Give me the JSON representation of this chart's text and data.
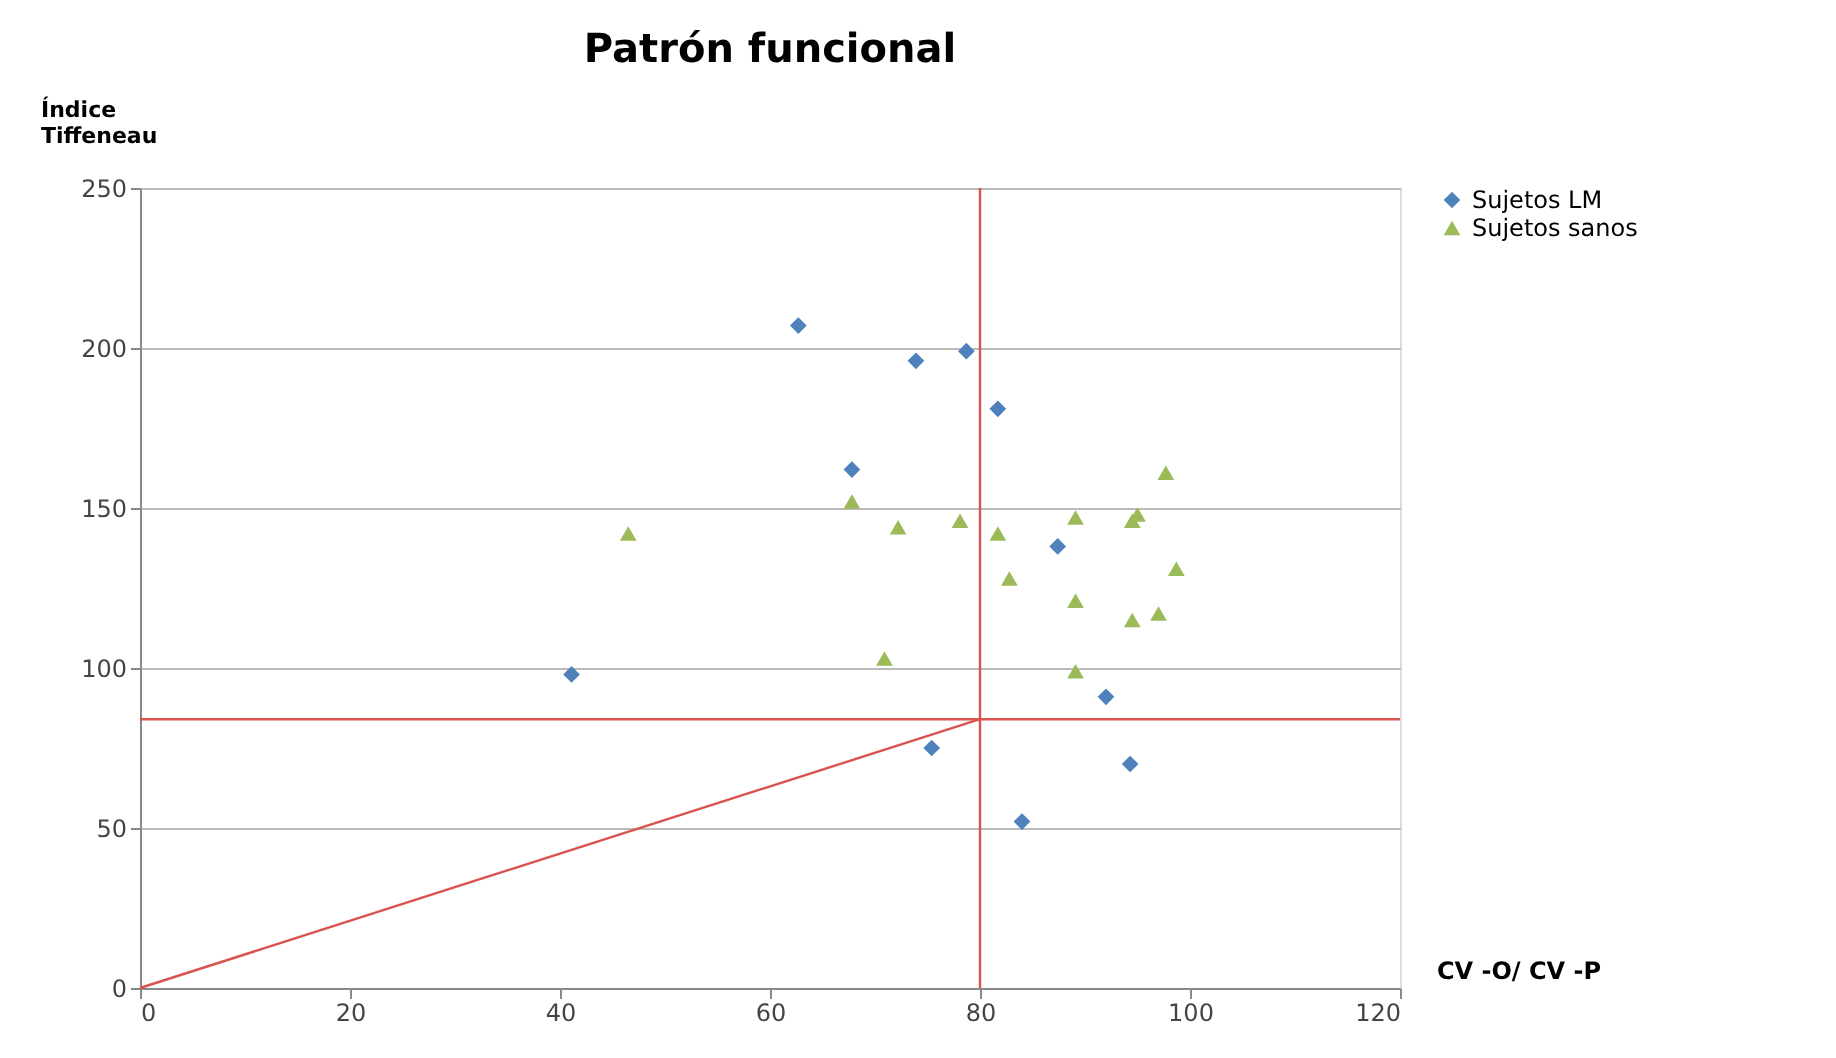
{
  "chart_data": {
    "type": "scatter",
    "title": "Patrón funcional",
    "xlabel": "CV -O/ CV -P",
    "ylabel": "Índice Tiffeneau",
    "xlim": [
      0,
      120
    ],
    "xticks": [
      0,
      20,
      40,
      60,
      80,
      100,
      120
    ],
    "ylim": [
      0,
      250
    ],
    "yticks": [
      0,
      50,
      100,
      150,
      200,
      250
    ],
    "grid": "y",
    "legend": "right",
    "series": [
      {
        "name": "Sujetos LM",
        "color": "#4f81bd",
        "marker": "diamond",
        "x": [
          62.7,
          73.9,
          78.7,
          81.7,
          67.8,
          87.4,
          92,
          75.4,
          94.3,
          84,
          41.1
        ],
        "values": [
          207,
          196,
          199,
          181,
          162,
          138,
          91,
          75,
          70,
          52,
          98
        ]
      },
      {
        "name": "Sujetos sanos",
        "color": "#9bbb59",
        "marker": "triangle",
        "x": [
          67.8,
          46.5,
          72.2,
          78.1,
          81.7,
          82.8,
          89.1,
          89.1,
          70.9,
          89.1,
          94.5,
          95,
          97.7,
          98.7,
          94.5,
          97
        ],
        "values": [
          152,
          142,
          144,
          146,
          142,
          128,
          147,
          121,
          103,
          99,
          146,
          148,
          161,
          131,
          115,
          117
        ]
      },
      {
        "type": "line",
        "color": "#d9534f",
        "marker": "none",
        "x": [
          0,
          80
        ],
        "values": [
          0,
          84
        ]
      }
    ],
    "ref_lines": [
      {
        "axis": "y",
        "value": 84,
        "color": "#d9534f"
      },
      {
        "axis": "x",
        "value": 80,
        "color": "#d9534f"
      }
    ]
  }
}
